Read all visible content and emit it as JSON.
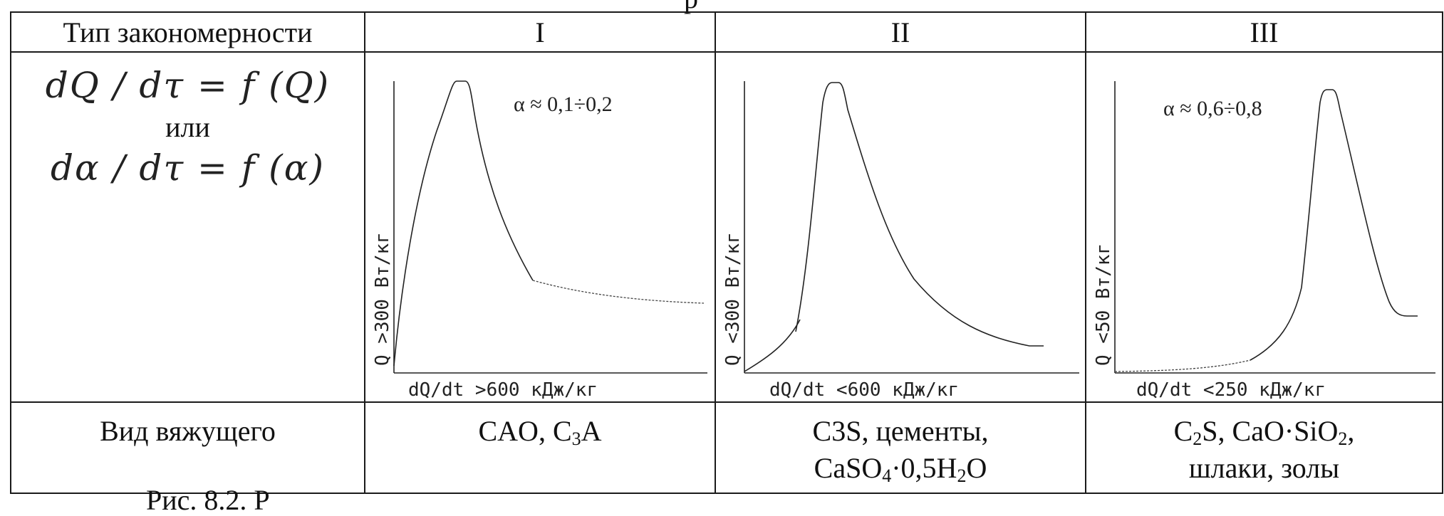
{
  "top_fragment": "р",
  "bottom_fragment": "Рис. 8.2. Р",
  "header": {
    "pattern_type": "Тип закономерности",
    "col1": "I",
    "col2": "II",
    "col3": "III"
  },
  "formula": {
    "line1": "dQ / dτ = f (Q)",
    "or": "или",
    "line2": "dα / dτ = f (α)"
  },
  "charts": [
    {
      "id": "I",
      "type": "line",
      "alpha_text": "α ≈ 0,1÷0,2",
      "ylabel": "Q >300 Вт/кг",
      "xlabel": "dQ/dt >600 кДж/кг",
      "shape": "rapid-rise-early-peak-then-decay-plateau"
    },
    {
      "id": "II",
      "type": "line",
      "alpha_text": "",
      "ylabel": "Q <300 Вт/кг",
      "xlabel": "dQ/dt <600 кДж/кг",
      "shape": "gradual-rise-sharp-peak-then-decay"
    },
    {
      "id": "III",
      "type": "line",
      "alpha_text": "α ≈ 0,6÷0,8",
      "ylabel": "Q <50 Вт/кг",
      "xlabel": "dQ/dt <250 кДж/кг",
      "shape": "long-induction-late-peak-then-drop"
    }
  ],
  "binder_row": {
    "label": "Вид вяжущего",
    "col1": {
      "parts": [
        "CAO, C",
        "3",
        "A"
      ]
    },
    "col2": {
      "line1": "C3S, цементы,",
      "line2_parts": [
        "CaSO",
        "4",
        "·0,5H",
        "2",
        "O"
      ]
    },
    "col3": {
      "line1_parts": [
        "C",
        "2",
        "S, CaO·SiO",
        "2",
        ","
      ],
      "line2": "шлаки, золы"
    }
  }
}
